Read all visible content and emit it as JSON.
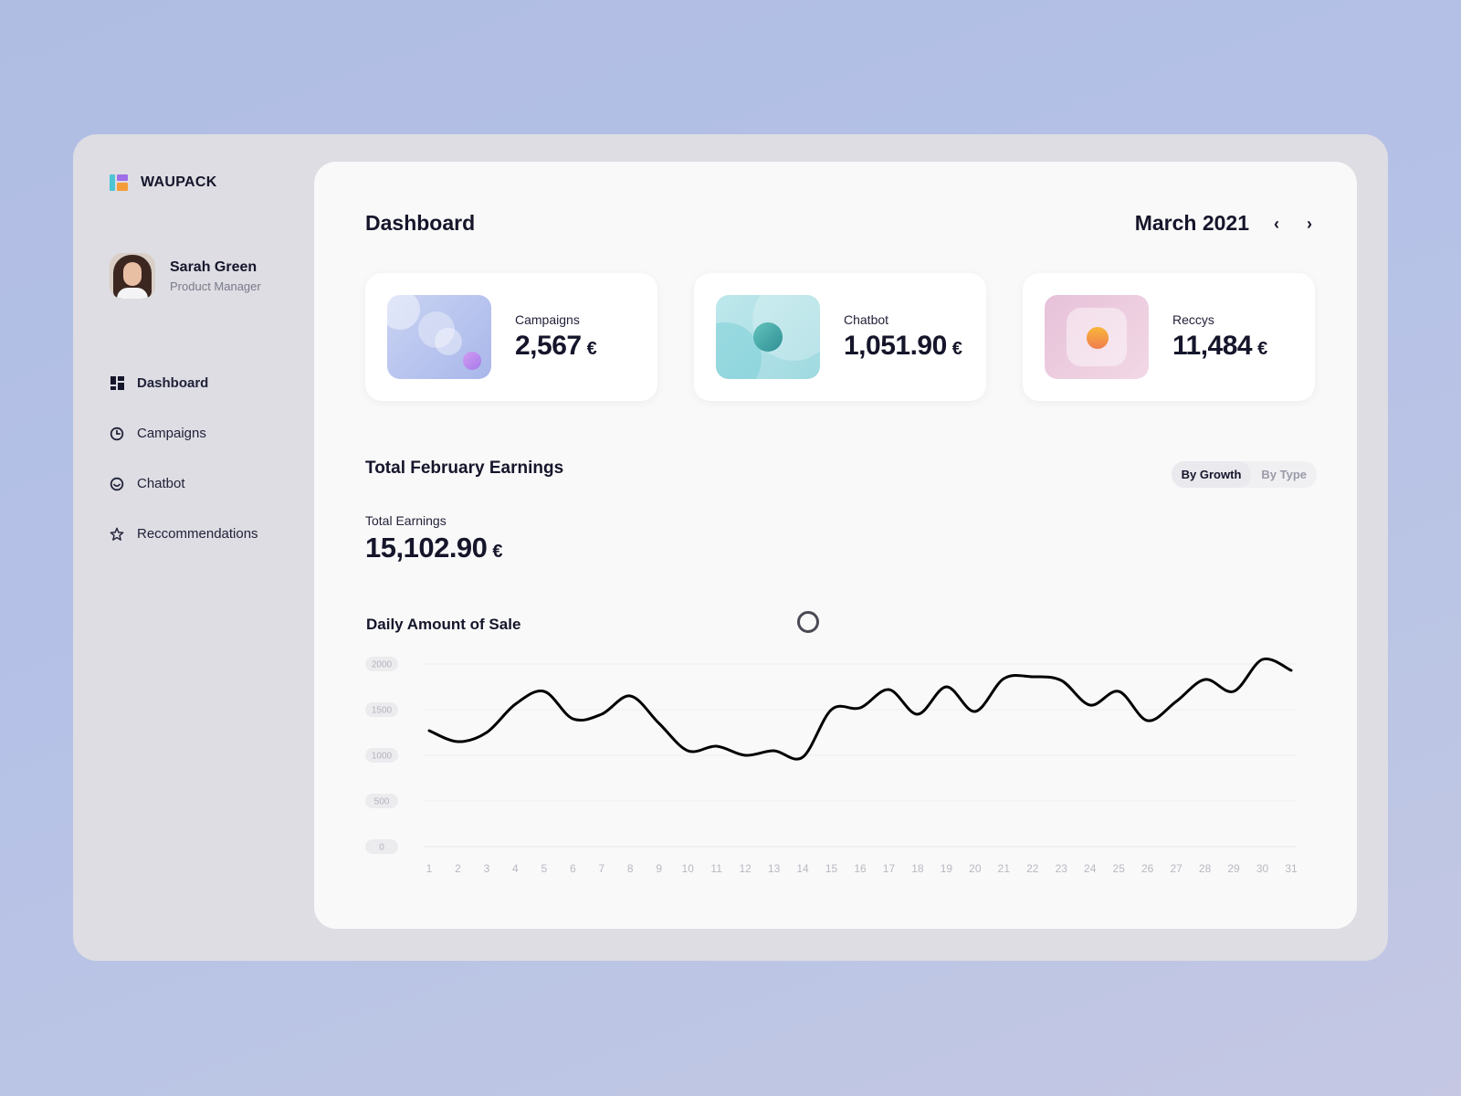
{
  "brand": {
    "name": "WAUPACK"
  },
  "profile": {
    "name": "Sarah Green",
    "role": "Product Manager"
  },
  "nav": {
    "items": [
      {
        "label": "Dashboard",
        "icon": "grid-icon",
        "active": true
      },
      {
        "label": "Campaigns",
        "icon": "clock-icon",
        "active": false
      },
      {
        "label": "Chatbot",
        "icon": "smile-icon",
        "active": false
      },
      {
        "label": "Reccommendations",
        "icon": "star-icon",
        "active": false
      }
    ]
  },
  "header": {
    "title": "Dashboard",
    "month": "March 2021",
    "prev_icon": "chevron-left-icon",
    "next_icon": "chevron-right-icon"
  },
  "cards": [
    {
      "label": "Campaigns",
      "value": "2,567",
      "currency": "€"
    },
    {
      "label": "Chatbot",
      "value": "1,051.90",
      "currency": "€"
    },
    {
      "label": "Reccys",
      "value": "11,484",
      "currency": "€"
    }
  ],
  "earnings": {
    "section_title": "Total February Earnings",
    "toggle": [
      "By Growth",
      "By Type"
    ],
    "toggle_active": 0,
    "label": "Total Earnings",
    "value": "15,102.90",
    "currency": "€"
  },
  "colors": {
    "accent_teal": "#4cc4d3",
    "accent_purple": "#9f6ee8",
    "accent_orange": "#f59c3a",
    "line": "#000000"
  },
  "chart_data": {
    "type": "line",
    "title": "Daily Amount of Sale",
    "xlabel": "",
    "ylabel": "",
    "x": [
      "1",
      "2",
      "3",
      "4",
      "5",
      "6",
      "7",
      "8",
      "9",
      "10",
      "11",
      "12",
      "13",
      "14",
      "15",
      "16",
      "17",
      "18",
      "19",
      "20",
      "21",
      "22",
      "23",
      "24",
      "25",
      "26",
      "27",
      "28",
      "29",
      "30",
      "31"
    ],
    "y_ticks": [
      "2000",
      "1500",
      "1000",
      "500",
      "0"
    ],
    "ylim": [
      0,
      2000
    ],
    "series": [
      {
        "values": [
          1270,
          1150,
          1250,
          1560,
          1700,
          1400,
          1450,
          1650,
          1350,
          1050,
          1100,
          1000,
          1050,
          980,
          1500,
          1520,
          1720,
          1450,
          1750,
          1480,
          1840,
          1860,
          1820,
          1550,
          1700,
          1380,
          1590,
          1830,
          1700,
          2050,
          1930
        ]
      }
    ],
    "grid": true,
    "legend": "none"
  }
}
